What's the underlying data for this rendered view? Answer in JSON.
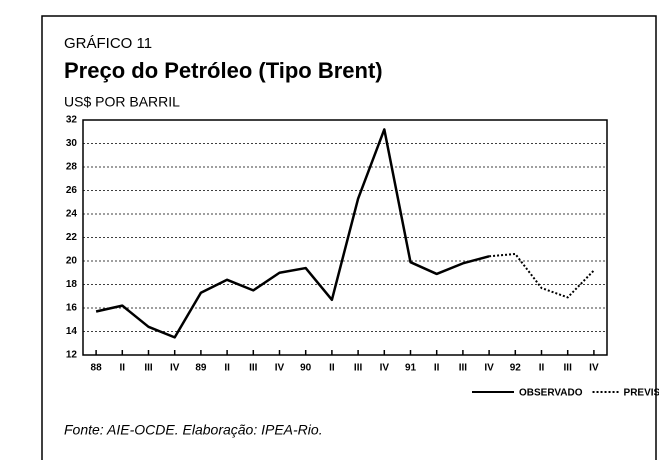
{
  "chart_data": {
    "type": "line",
    "label": "GRÁFICO 11",
    "title": "Preço do Petróleo (Tipo Brent)",
    "subtitle": "US$ POR BARRIL",
    "source": "Fonte: AIE-OCDE. Elaboração: IPEA-Rio.",
    "categories": [
      "88",
      "II",
      "III",
      "IV",
      "89",
      "II",
      "III",
      "IV",
      "90",
      "II",
      "III",
      "IV",
      "91",
      "II",
      "III",
      "IV",
      "92",
      "II",
      "III",
      "IV"
    ],
    "series": [
      {
        "name": "OBSERVADO",
        "color": "#000000",
        "style": "solid",
        "values": [
          15.7,
          16.2,
          14.4,
          13.5,
          17.3,
          18.4,
          17.5,
          19.0,
          19.4,
          16.7,
          25.3,
          31.2,
          19.9,
          18.9,
          19.8,
          20.4,
          null,
          null,
          null,
          null
        ]
      },
      {
        "name": "PREVISTO",
        "color": "#000000",
        "style": "dotted",
        "values": [
          null,
          null,
          null,
          null,
          null,
          null,
          null,
          null,
          null,
          null,
          null,
          null,
          null,
          null,
          null,
          20.4,
          20.6,
          17.7,
          16.9,
          19.2
        ]
      }
    ],
    "ylim": [
      12,
      32
    ],
    "yticks": [
      12,
      14,
      16,
      18,
      20,
      22,
      24,
      26,
      28,
      30,
      32
    ],
    "grid": true
  }
}
